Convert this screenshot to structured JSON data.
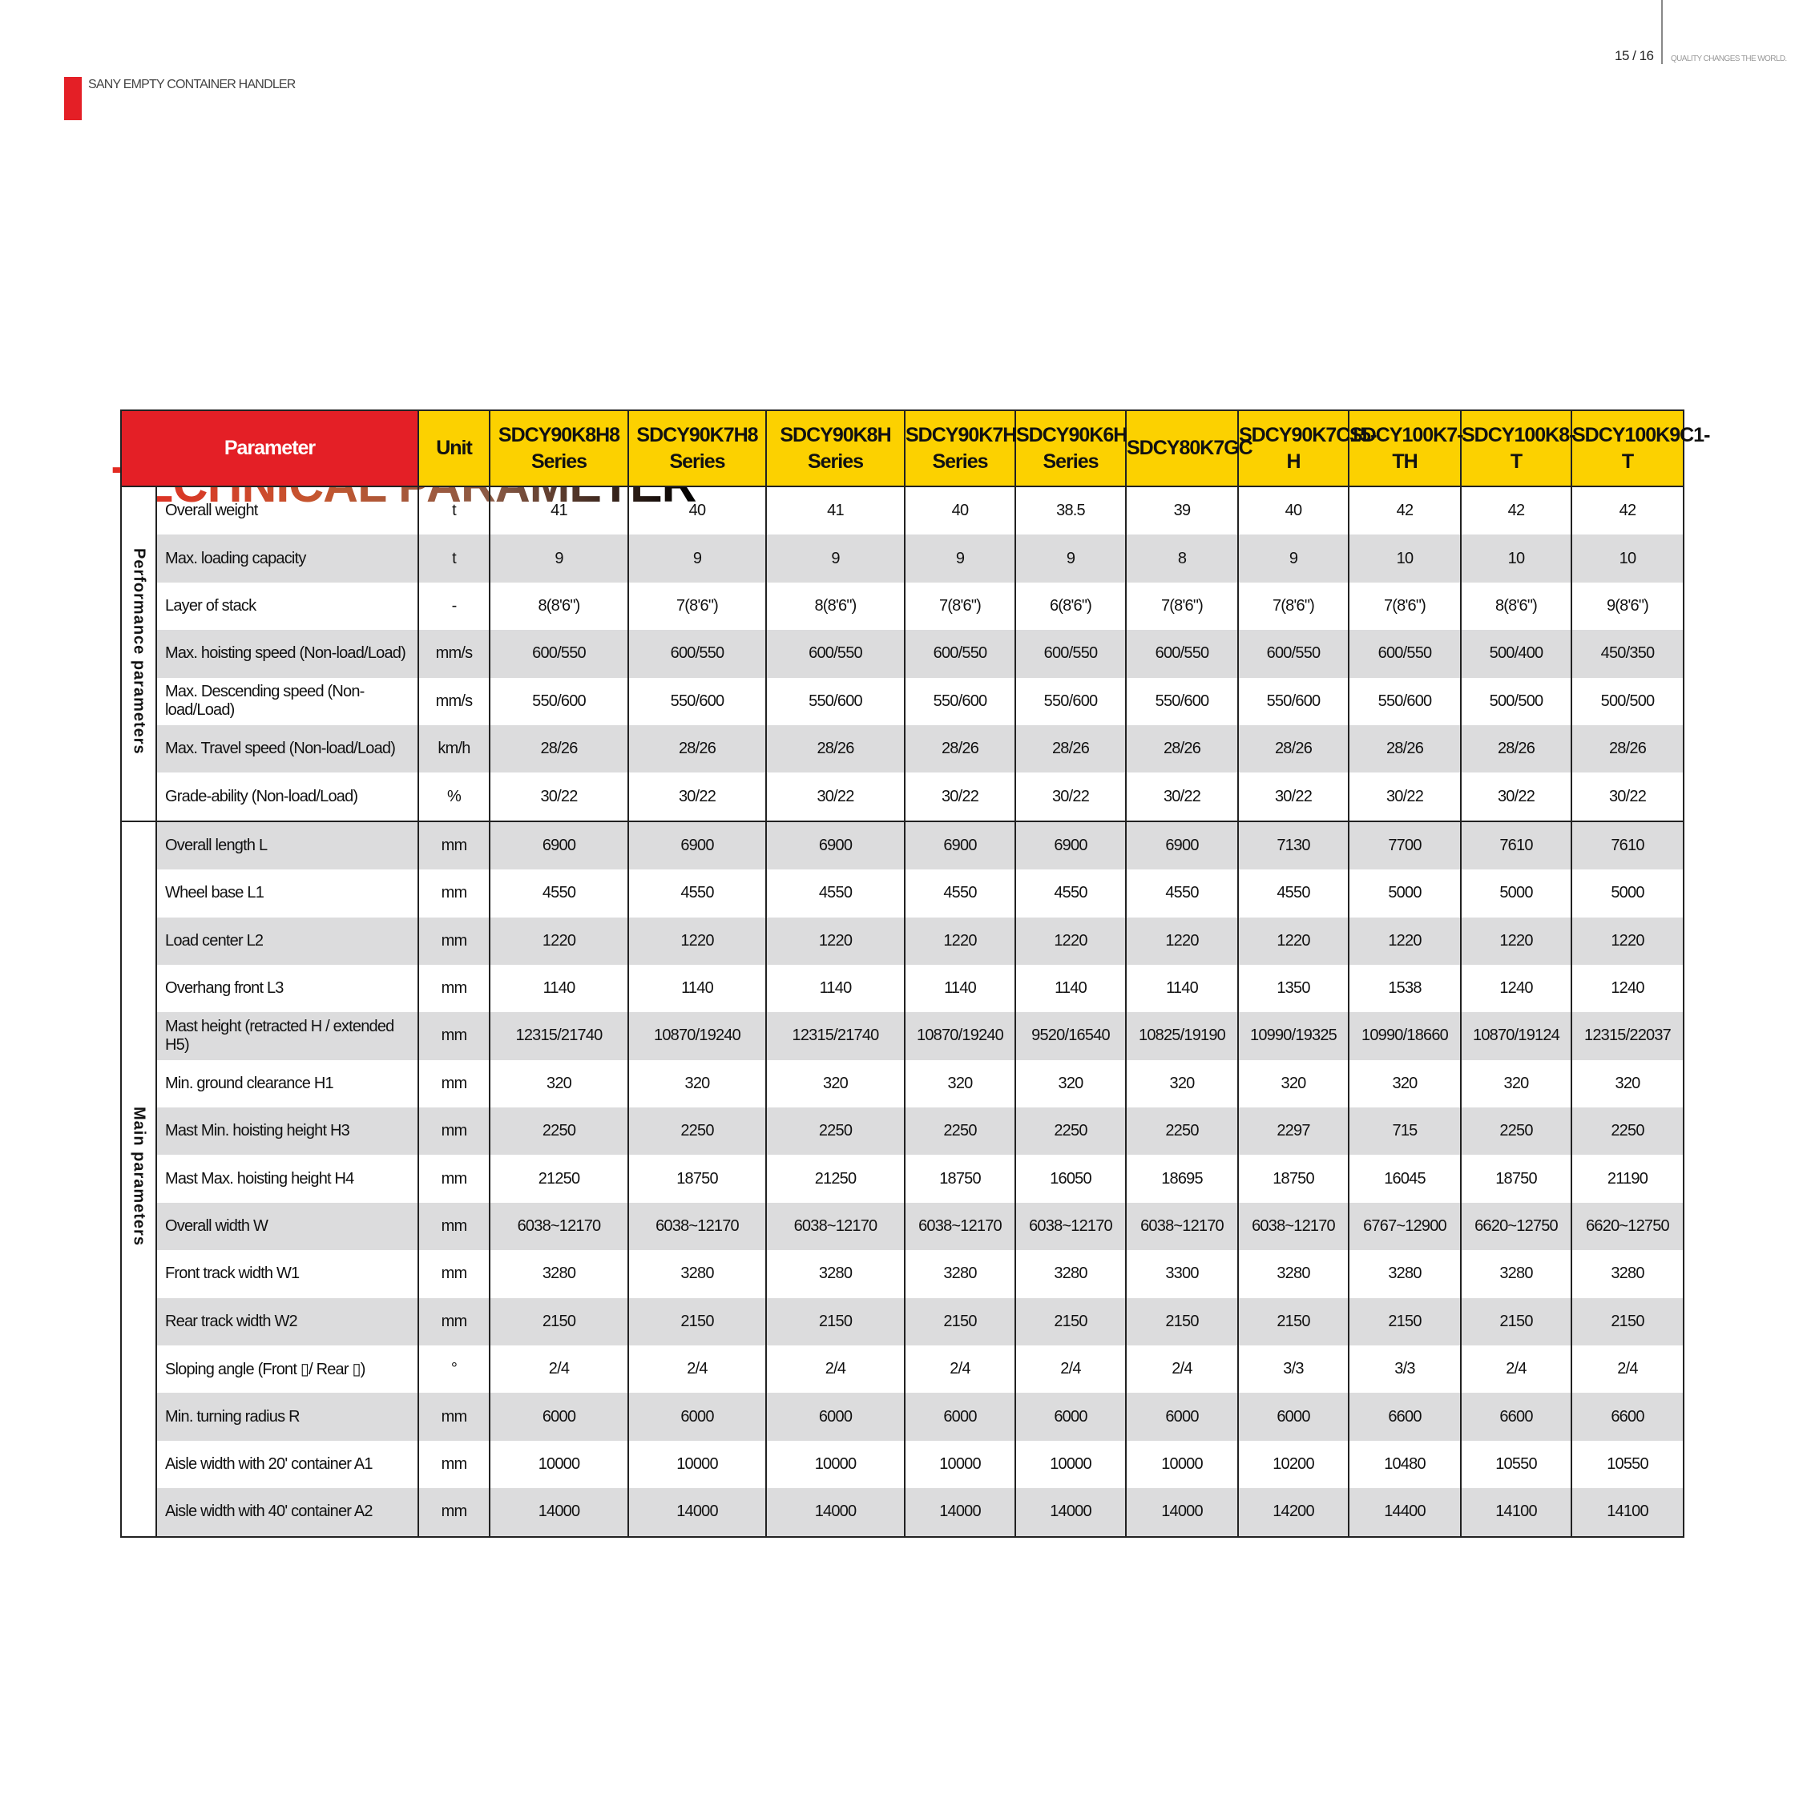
{
  "header": {
    "brand": "SANY EMPTY CONTAINER HANDLER",
    "page": "15 / 16",
    "tagline": "QUALITY CHANGES THE WORLD."
  },
  "title": "TECHNICAL PARAMETER",
  "colors": {
    "accent_red": "#e41f26",
    "header_yellow": "#fcd100",
    "row_gray": "#dcdcdd"
  },
  "table": {
    "param_label": "Parameter",
    "unit_label": "Unit",
    "models": [
      "SDCY90K8H8 Series",
      "SDCY90K7H8 Series",
      "SDCY90K8H Series",
      "SDCY90K7H Series",
      "SDCY90K6H Series",
      "SDCY80K7GC",
      "SDCY90K7C15-H",
      "SDCY100K7-TH",
      "SDCY100K8-T",
      "SDCY100K9C1-T"
    ],
    "groups": [
      {
        "label": "Performance parameters",
        "rows": [
          {
            "name": "Overall weight",
            "unit": "t",
            "values": [
              "41",
              "40",
              "41",
              "40",
              "38.5",
              "39",
              "40",
              "42",
              "42",
              "42"
            ]
          },
          {
            "name": "Max. loading capacity",
            "unit": "t",
            "values": [
              "9",
              "9",
              "9",
              "9",
              "9",
              "8",
              "9",
              "10",
              "10",
              "10"
            ]
          },
          {
            "name": "Layer of stack",
            "unit": "-",
            "values": [
              "8(8'6\")",
              "7(8'6\")",
              "8(8'6\")",
              "7(8'6\")",
              "6(8'6\")",
              "7(8'6\")",
              "7(8'6\")",
              "7(8'6\")",
              "8(8'6\")",
              "9(8'6\")"
            ]
          },
          {
            "name": "Max. hoisting speed (Non-load/Load)",
            "unit": "mm/s",
            "values": [
              "600/550",
              "600/550",
              "600/550",
              "600/550",
              "600/550",
              "600/550",
              "600/550",
              "600/550",
              "500/400",
              "450/350"
            ]
          },
          {
            "name": "Max. Descending speed (Non-load/Load)",
            "unit": "mm/s",
            "values": [
              "550/600",
              "550/600",
              "550/600",
              "550/600",
              "550/600",
              "550/600",
              "550/600",
              "550/600",
              "500/500",
              "500/500"
            ]
          },
          {
            "name": "Max. Travel speed (Non-load/Load)",
            "unit": "km/h",
            "values": [
              "28/26",
              "28/26",
              "28/26",
              "28/26",
              "28/26",
              "28/26",
              "28/26",
              "28/26",
              "28/26",
              "28/26"
            ]
          },
          {
            "name": "Grade-ability (Non-load/Load)",
            "unit": "%",
            "values": [
              "30/22",
              "30/22",
              "30/22",
              "30/22",
              "30/22",
              "30/22",
              "30/22",
              "30/22",
              "30/22",
              "30/22"
            ]
          }
        ]
      },
      {
        "label": "Main parameters",
        "rows": [
          {
            "name": "Overall length L",
            "unit": "mm",
            "values": [
              "6900",
              "6900",
              "6900",
              "6900",
              "6900",
              "6900",
              "7130",
              "7700",
              "7610",
              "7610"
            ]
          },
          {
            "name": "Wheel base L1",
            "unit": "mm",
            "values": [
              "4550",
              "4550",
              "4550",
              "4550",
              "4550",
              "4550",
              "4550",
              "5000",
              "5000",
              "5000"
            ]
          },
          {
            "name": "Load center L2",
            "unit": "mm",
            "values": [
              "1220",
              "1220",
              "1220",
              "1220",
              "1220",
              "1220",
              "1220",
              "1220",
              "1220",
              "1220"
            ]
          },
          {
            "name": "Overhang front  L3",
            "unit": "mm",
            "values": [
              "1140",
              "1140",
              "1140",
              "1140",
              "1140",
              "1140",
              "1350",
              "1538",
              "1240",
              "1240"
            ]
          },
          {
            "name": "Mast height (retracted H / extended H5)",
            "unit": "mm",
            "values": [
              "12315/21740",
              "10870/19240",
              "12315/21740",
              "10870/19240",
              "9520/16540",
              "10825/19190",
              "10990/19325",
              "10990/18660",
              "10870/19124",
              "12315/22037"
            ]
          },
          {
            "name": "Min. ground clearance H1",
            "unit": "mm",
            "values": [
              "320",
              "320",
              "320",
              "320",
              "320",
              "320",
              "320",
              "320",
              "320",
              "320"
            ]
          },
          {
            "name": "Mast Min. hoisting height H3",
            "unit": "mm",
            "values": [
              "2250",
              "2250",
              "2250",
              "2250",
              "2250",
              "2250",
              "2297",
              "715",
              "2250",
              "2250"
            ]
          },
          {
            "name": "Mast Max. hoisting height H4",
            "unit": "mm",
            "values": [
              "21250",
              "18750",
              "21250",
              "18750",
              "16050",
              "18695",
              "18750",
              "16045",
              "18750",
              "21190"
            ]
          },
          {
            "name": "Overall width W",
            "unit": "mm",
            "values": [
              "6038~12170",
              "6038~12170",
              "6038~12170",
              "6038~12170",
              "6038~12170",
              "6038~12170",
              "6038~12170",
              "6767~12900",
              "6620~12750",
              "6620~12750"
            ]
          },
          {
            "name": "Front track width W1",
            "unit": "mm",
            "values": [
              "3280",
              "3280",
              "3280",
              "3280",
              "3280",
              "3300",
              "3280",
              "3280",
              "3280",
              "3280"
            ]
          },
          {
            "name": "Rear track width W2",
            "unit": "mm",
            "values": [
              "2150",
              "2150",
              "2150",
              "2150",
              "2150",
              "2150",
              "2150",
              "2150",
              "2150",
              "2150"
            ]
          },
          {
            "name": "Sloping angle (Front ▯/ Rear ▯)",
            "unit": "°",
            "values": [
              "2/4",
              "2/4",
              "2/4",
              "2/4",
              "2/4",
              "2/4",
              "3/3",
              "3/3",
              "2/4",
              "2/4"
            ]
          },
          {
            "name": "Min. turning radius R",
            "unit": "mm",
            "values": [
              "6000",
              "6000",
              "6000",
              "6000",
              "6000",
              "6000",
              "6000",
              "6600",
              "6600",
              "6600"
            ]
          },
          {
            "name": "Aisle width with 20' container A1",
            "unit": "mm",
            "values": [
              "10000",
              "10000",
              "10000",
              "10000",
              "10000",
              "10000",
              "10200",
              "10480",
              "10550",
              "10550"
            ]
          },
          {
            "name": "Aisle width with 40' container A2",
            "unit": "mm",
            "values": [
              "14000",
              "14000",
              "14000",
              "14000",
              "14000",
              "14000",
              "14200",
              "14400",
              "14100",
              "14100"
            ]
          }
        ]
      }
    ]
  }
}
